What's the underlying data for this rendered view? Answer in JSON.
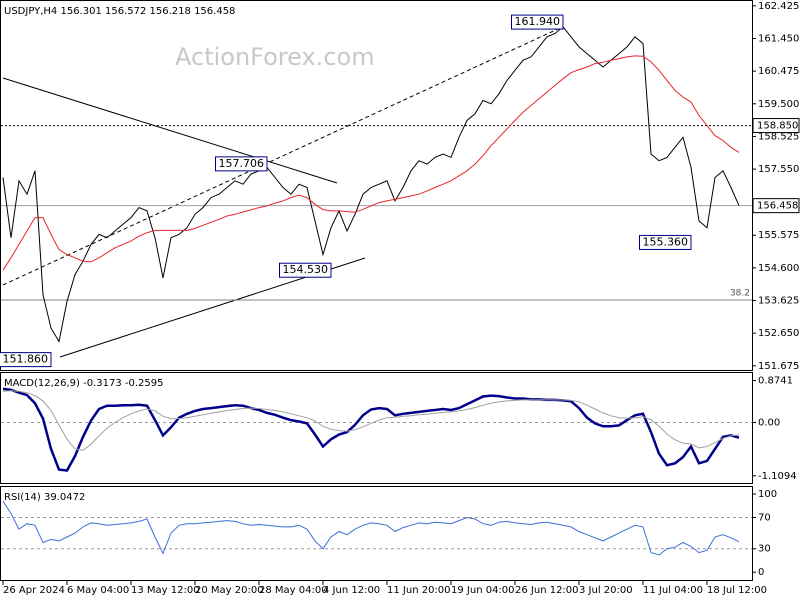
{
  "chart_data": [
    {
      "type": "line",
      "title": "USDJPY,H4 156.301 156.572 156.218 156.458",
      "watermark": "ActionForex.com",
      "categories": [
        "26 Apr 2024",
        null,
        null,
        null,
        null,
        null,
        null,
        null,
        "6 May 04:00",
        null,
        null,
        null,
        null,
        null,
        null,
        null,
        "13 May 12:00",
        null,
        null,
        null,
        null,
        null,
        null,
        null,
        "20 May 20:00",
        null,
        null,
        null,
        null,
        null,
        null,
        null,
        "28 May 04:00",
        null,
        null,
        null,
        null,
        null,
        null,
        null,
        "4 Jun 12:00",
        null,
        null,
        null,
        null,
        null,
        null,
        null,
        "11 Jun 20:00",
        null,
        null,
        null,
        null,
        null,
        null,
        null,
        "19 Jun 04:00",
        null,
        null,
        null,
        null,
        null,
        null,
        null,
        "26 Jun 12:00",
        null,
        null,
        null,
        null,
        null,
        null,
        null,
        "3 Jul 20:00",
        null,
        null,
        null,
        null,
        null,
        null,
        null,
        "11 Jul 04:00",
        null,
        null,
        null,
        null,
        null,
        null,
        null,
        "18 Jul 12:00",
        null,
        null,
        null,
        null
      ],
      "series": [
        {
          "color": "#000000",
          "values": [
            157.3,
            155.5,
            157.2,
            156.8,
            157.5,
            153.8,
            152.8,
            152.4,
            153.6,
            154.4,
            154.8,
            155.3,
            155.6,
            155.5,
            155.7,
            155.9,
            156.1,
            156.4,
            156.3,
            155.5,
            154.3,
            155.5,
            155.6,
            155.8,
            156.2,
            156.4,
            156.7,
            156.8,
            157.0,
            157.2,
            157.1,
            157.4,
            157.5,
            157.6,
            157.3,
            157.0,
            156.8,
            157.1,
            157.0,
            156.0,
            155.0,
            155.8,
            156.3,
            155.7,
            156.2,
            156.8,
            157.0,
            157.1,
            157.2,
            156.6,
            157.0,
            157.5,
            157.8,
            157.7,
            157.9,
            158.0,
            157.9,
            158.5,
            159.0,
            159.2,
            159.6,
            159.5,
            159.8,
            160.2,
            160.5,
            160.8,
            160.9,
            161.2,
            161.5,
            161.6,
            161.8,
            161.5,
            161.2,
            161.0,
            160.8,
            160.6,
            160.8,
            161.0,
            161.2,
            161.5,
            161.3,
            158.0,
            157.8,
            157.9,
            158.2,
            158.5,
            157.6,
            156.0,
            155.8,
            157.3,
            157.5,
            157.0,
            156.458
          ]
        },
        {
          "color": "#e8262b",
          "values": [
            154.53,
            154.9,
            155.3,
            155.7,
            156.1,
            156.1,
            155.6,
            155.15,
            155.0,
            154.9,
            154.8,
            154.78,
            154.9,
            155.05,
            155.2,
            155.3,
            155.4,
            155.55,
            155.65,
            155.72,
            155.72,
            155.72,
            155.72,
            155.72,
            155.78,
            155.87,
            155.96,
            156.05,
            156.15,
            156.2,
            156.27,
            156.33,
            156.4,
            156.45,
            156.53,
            156.6,
            156.7,
            156.77,
            156.7,
            156.5,
            156.34,
            156.3,
            156.3,
            156.28,
            156.26,
            156.35,
            156.45,
            156.55,
            156.6,
            156.65,
            156.7,
            156.75,
            156.8,
            156.9,
            157.0,
            157.1,
            157.2,
            157.35,
            157.5,
            157.7,
            157.95,
            158.25,
            158.5,
            158.75,
            159.0,
            159.25,
            159.45,
            159.65,
            159.85,
            160.05,
            160.25,
            160.43,
            160.52,
            160.6,
            160.7,
            160.74,
            160.8,
            160.85,
            160.9,
            160.93,
            160.92,
            160.75,
            160.5,
            160.2,
            159.9,
            159.7,
            159.55,
            159.15,
            158.85,
            158.55,
            158.4,
            158.2,
            158.05
          ]
        }
      ],
      "ylim": [
        151.55,
        162.57
      ],
      "yticks": [
        162.425,
        {
          "value": 161.45,
          "label": "161.450"
        },
        160.475,
        {
          "value": 159.5,
          "label": "159.500"
        },
        158.525,
        {
          "value": 157.55,
          "label": "157.550"
        },
        155.575,
        {
          "value": 154.6,
          "label": "154.600"
        },
        153.625,
        {
          "value": 152.65,
          "label": "152.650"
        },
        151.675
      ],
      "annotations": [
        {
          "index": 70,
          "value": 161.94,
          "label": "161.940"
        },
        {
          "index": 33,
          "value": 157.706,
          "label": "157.706"
        },
        {
          "index": 41,
          "value": 154.53,
          "label": "154.530"
        },
        {
          "index": 6,
          "value": 151.86,
          "label": "151.860"
        },
        {
          "index": 86,
          "value": 155.36,
          "label": "155.360"
        }
      ],
      "hlines": [
        {
          "value": 158.85,
          "label": "158.850",
          "style": "dotted"
        },
        {
          "value": 156.458,
          "label": "156.458",
          "style": "solid"
        }
      ],
      "fib": {
        "value": 153.64,
        "label": "38.2"
      }
    },
    {
      "type": "line",
      "title": "MACD(12,26,9) -0.3173 -0.2595",
      "series": [
        {
          "color": "#00008b",
          "values": [
            0.7,
            0.68,
            0.62,
            0.57,
            0.4,
            0.08,
            -0.55,
            -0.98,
            -1.0,
            -0.7,
            -0.3,
            0.04,
            0.28,
            0.35,
            0.35,
            0.36,
            0.36,
            0.37,
            0.35,
            0.05,
            -0.27,
            -0.1,
            0.1,
            0.18,
            0.24,
            0.28,
            0.3,
            0.32,
            0.34,
            0.36,
            0.35,
            0.3,
            0.26,
            0.2,
            0.16,
            0.1,
            0.05,
            0.02,
            -0.02,
            -0.25,
            -0.5,
            -0.35,
            -0.25,
            -0.2,
            -0.05,
            0.15,
            0.27,
            0.3,
            0.28,
            0.15,
            0.18,
            0.2,
            0.22,
            0.24,
            0.26,
            0.28,
            0.26,
            0.3,
            0.38,
            0.46,
            0.54,
            0.56,
            0.55,
            0.52,
            0.5,
            0.5,
            0.48,
            0.48,
            0.47,
            0.47,
            0.46,
            0.44,
            0.3,
            0.1,
            -0.02,
            -0.08,
            -0.08,
            -0.06,
            0.05,
            0.15,
            0.18,
            -0.2,
            -0.65,
            -0.89,
            -0.85,
            -0.72,
            -0.5,
            -0.85,
            -0.8,
            -0.55,
            -0.3,
            -0.27,
            -0.3173
          ]
        },
        {
          "color": "#a0a0a0",
          "values": [
            0.65,
            0.66,
            0.65,
            0.62,
            0.56,
            0.45,
            0.25,
            -0.05,
            -0.35,
            -0.55,
            -0.58,
            -0.45,
            -0.28,
            -0.12,
            0.0,
            0.1,
            0.18,
            0.24,
            0.28,
            0.24,
            0.13,
            0.08,
            0.08,
            0.1,
            0.13,
            0.16,
            0.19,
            0.22,
            0.25,
            0.27,
            0.29,
            0.3,
            0.29,
            0.27,
            0.25,
            0.22,
            0.18,
            0.14,
            0.1,
            0.03,
            -0.08,
            -0.14,
            -0.17,
            -0.18,
            -0.15,
            -0.09,
            -0.02,
            0.05,
            0.1,
            0.11,
            0.13,
            0.14,
            0.16,
            0.17,
            0.19,
            0.21,
            0.22,
            0.24,
            0.27,
            0.31,
            0.36,
            0.4,
            0.43,
            0.45,
            0.46,
            0.47,
            0.47,
            0.47,
            0.47,
            0.47,
            0.47,
            0.46,
            0.43,
            0.36,
            0.28,
            0.2,
            0.14,
            0.1,
            0.09,
            0.1,
            0.12,
            0.06,
            -0.08,
            -0.24,
            -0.36,
            -0.43,
            -0.45,
            -0.53,
            -0.5,
            -0.42,
            -0.33,
            -0.28,
            -0.2595
          ]
        }
      ],
      "ylim": [
        -1.26,
        1.03
      ],
      "yticks": [
        0.8741,
        {
          "value": 0,
          "label": "0.00"
        },
        -1.1094
      ],
      "levels": [
        0
      ]
    },
    {
      "type": "line",
      "title": "RSI(14) 39.0472",
      "series": [
        {
          "color": "#3f6fd8",
          "values": [
            91,
            75,
            55,
            62,
            60,
            38,
            42,
            40,
            45,
            50,
            58,
            63,
            62,
            60,
            61,
            62,
            63,
            65,
            68,
            45,
            24,
            50,
            60,
            62,
            62,
            63,
            64,
            65,
            66,
            65,
            62,
            60,
            61,
            60,
            59,
            58,
            58,
            60,
            55,
            40,
            30,
            45,
            52,
            48,
            55,
            60,
            63,
            62,
            60,
            52,
            57,
            60,
            63,
            62,
            64,
            63,
            62,
            66,
            70,
            68,
            62,
            60,
            64,
            65,
            63,
            62,
            61,
            63,
            64,
            62,
            60,
            58,
            52,
            48,
            44,
            40,
            45,
            50,
            55,
            60,
            58,
            25,
            22,
            30,
            32,
            38,
            33,
            25,
            28,
            45,
            48,
            44,
            39.0472
          ]
        }
      ],
      "ylim": [
        -10,
        109
      ],
      "yticks": [
        100,
        70,
        30,
        0
      ],
      "levels": [
        70,
        30
      ]
    }
  ]
}
